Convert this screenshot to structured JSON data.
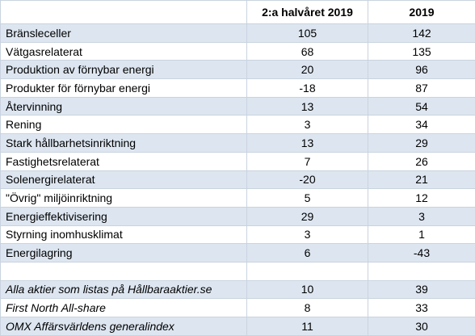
{
  "table": {
    "header": [
      "2:a halvåret 2019",
      "2019"
    ],
    "rows": [
      [
        "Bränsleceller",
        105,
        142
      ],
      [
        "Vätgasrelaterat",
        68,
        135
      ],
      [
        "Produktion av förnybar energi",
        20,
        96
      ],
      [
        "Produkter för förnybar energi",
        -18,
        87
      ],
      [
        "Återvinning",
        13,
        54
      ],
      [
        "Rening",
        3,
        34
      ],
      [
        "Stark hållbarhetsinriktning",
        13,
        29
      ],
      [
        "Fastighetsrelaterat",
        7,
        26
      ],
      [
        "Solenergirelaterat",
        -20,
        21
      ],
      [
        "\"Övrig\" miljöinriktning",
        5,
        12
      ],
      [
        "Energieffektivisering",
        29,
        3
      ],
      [
        "Styrning inomhusklimat",
        3,
        1
      ],
      [
        "Energilagring",
        6,
        -43
      ]
    ],
    "index_rows": [
      [
        "Alla aktier som listas på Hållbaraaktier.se",
        10,
        39
      ],
      [
        "First North All-share",
        8,
        33
      ],
      [
        "OMX Affärsvärldens generalindex",
        11,
        30
      ]
    ]
  }
}
